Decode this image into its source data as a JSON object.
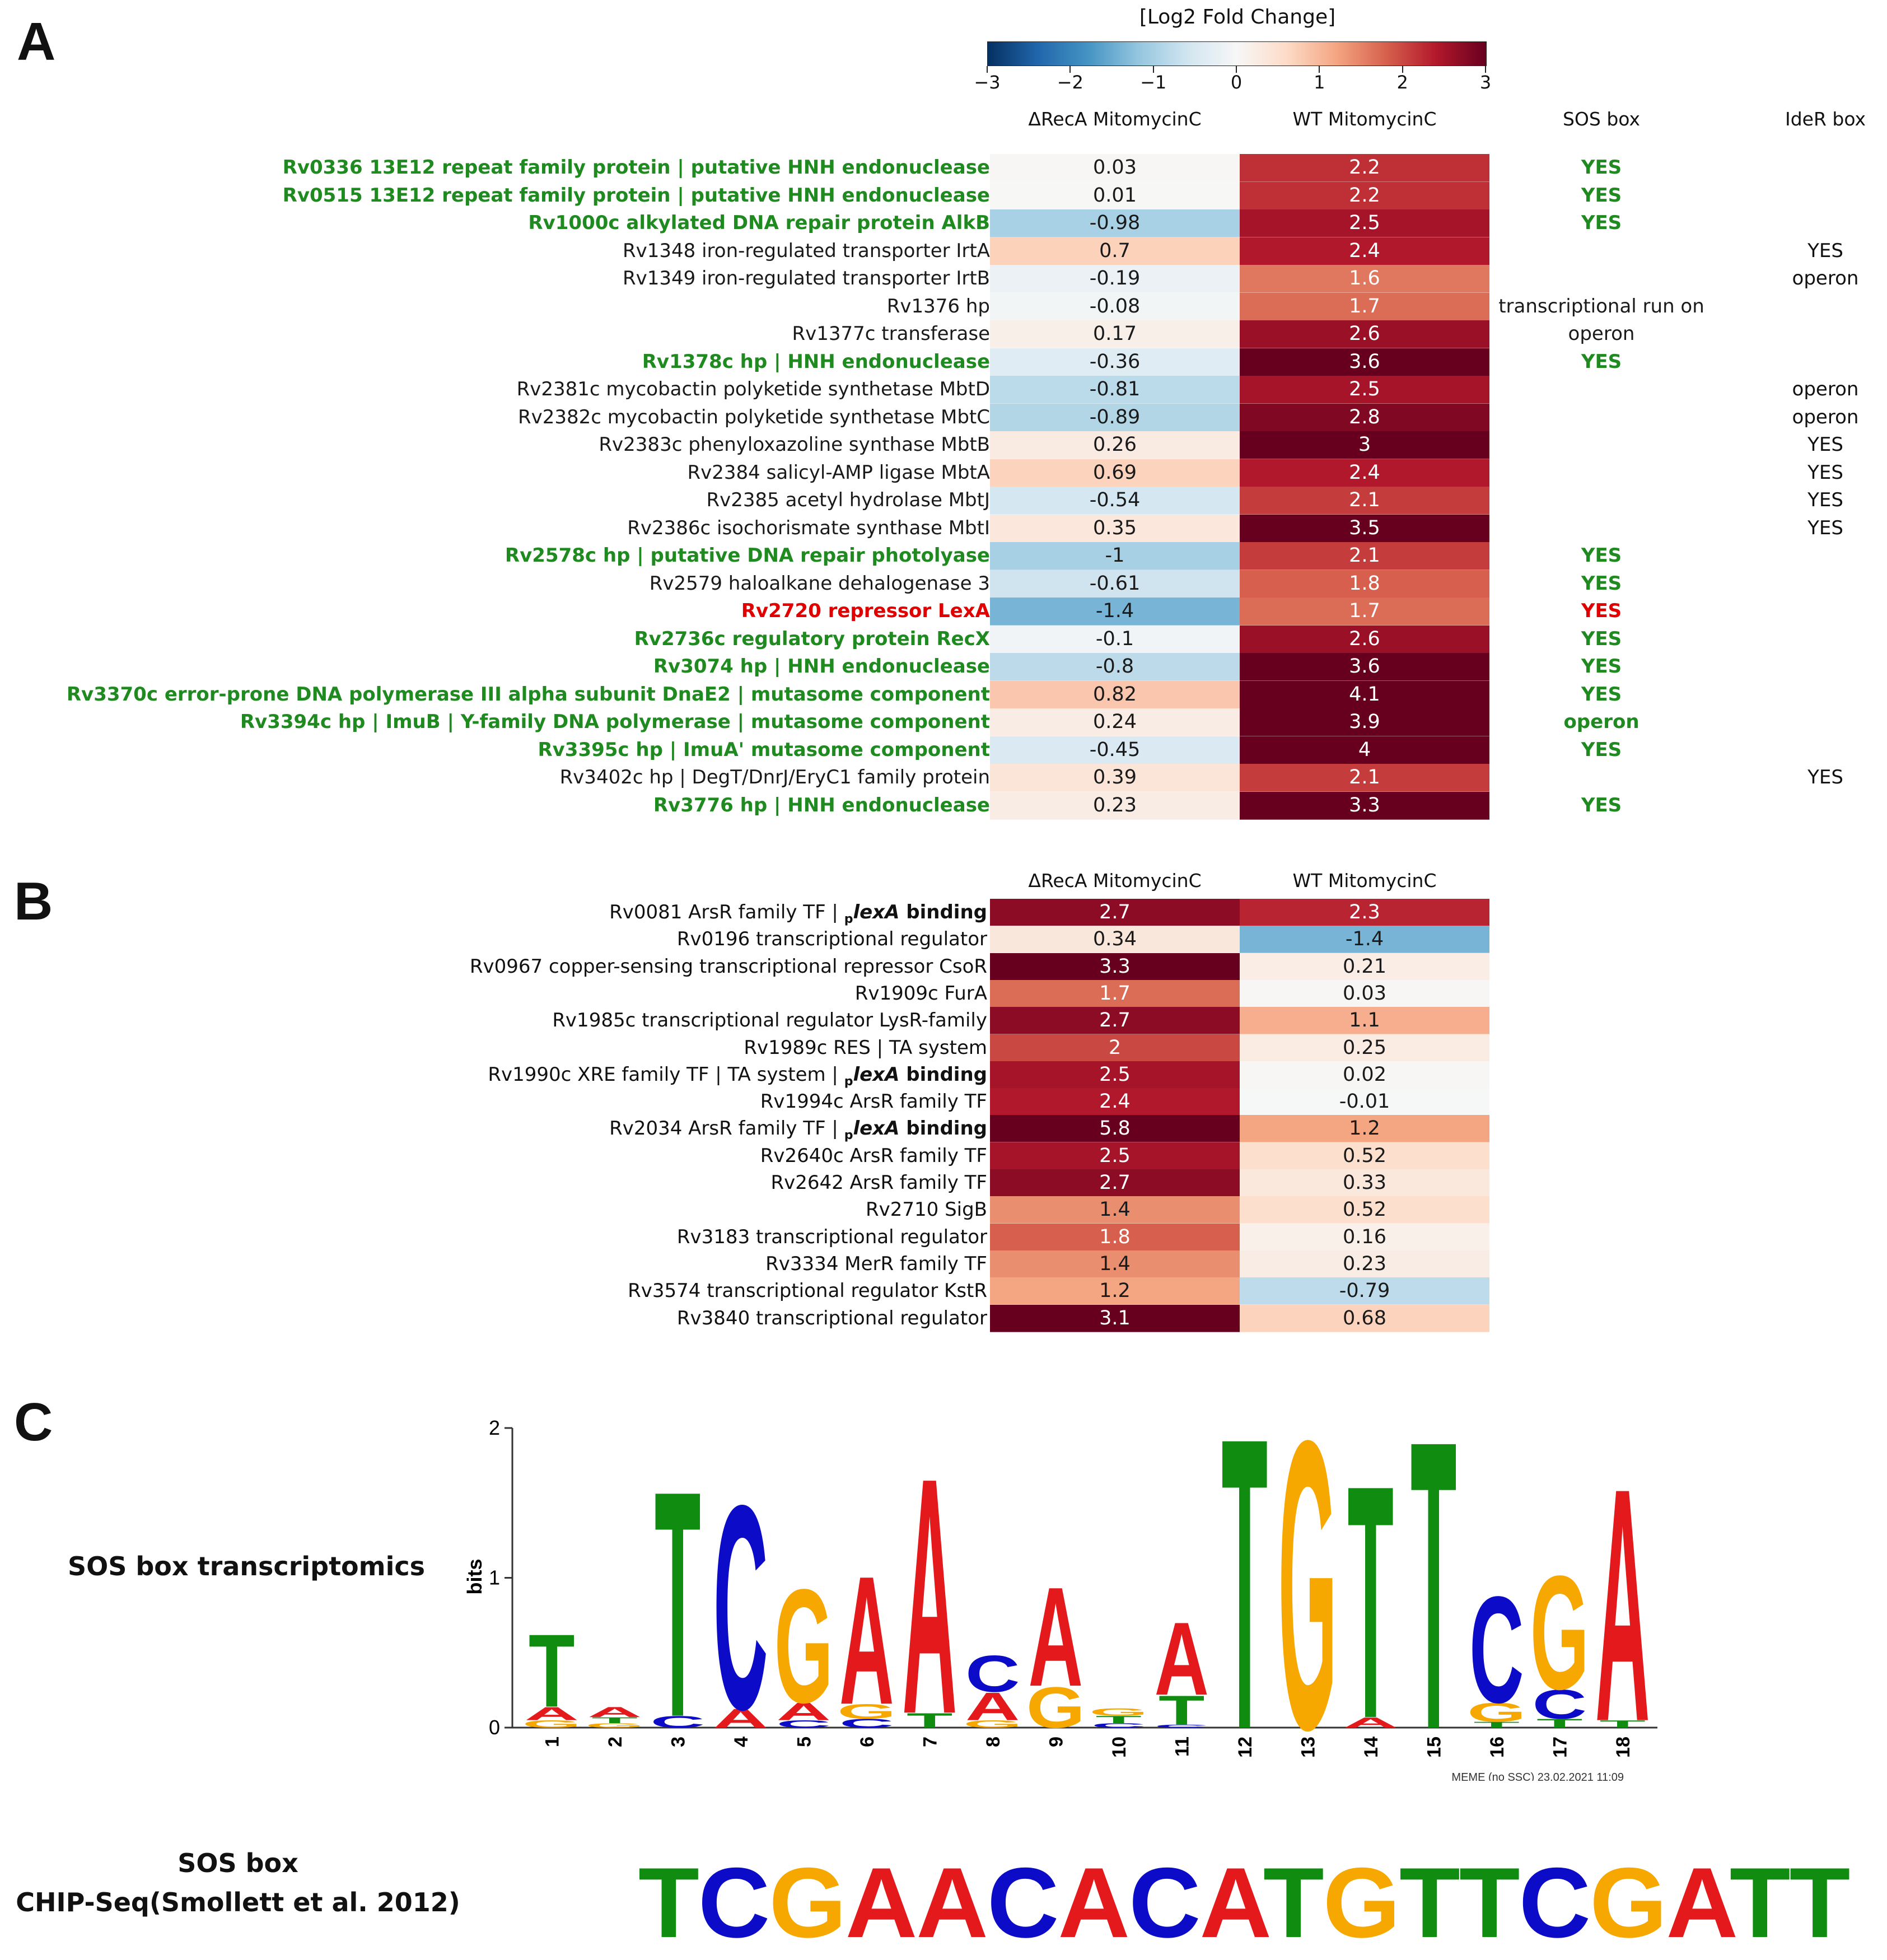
{
  "panels": {
    "a": "A",
    "b": "B",
    "c": "C"
  },
  "colorbar": {
    "title": "[Log2 Fold Change]",
    "ticks": [
      "−3",
      "−2",
      "−1",
      "0",
      "1",
      "2",
      "3"
    ],
    "min": -3,
    "max": 3
  },
  "panel_a": {
    "headers": {
      "col1": "ΔRecA MitomycinC",
      "col2": "WT MitomycinC",
      "col3": "SOS box",
      "col4": "IdeR box"
    },
    "rows": [
      {
        "label": "Rv0336 13E12 repeat family protein | putative HNH endonuclease",
        "style": "green",
        "recA": "0.03",
        "wt": "2.2",
        "sos": "YES",
        "sos_style": "green",
        "ider": ""
      },
      {
        "label": "Rv0515 13E12 repeat family protein | putative HNH endonuclease",
        "style": "green",
        "recA": "0.01",
        "wt": "2.2",
        "sos": "YES",
        "sos_style": "green",
        "ider": ""
      },
      {
        "label": "Rv1000c alkylated DNA repair protein AlkB",
        "style": "green",
        "recA": "-0.98",
        "wt": "2.5",
        "sos": "YES",
        "sos_style": "green",
        "ider": ""
      },
      {
        "label": "Rv1348 iron-regulated transporter IrtA",
        "style": "black",
        "recA": "0.7",
        "wt": "2.4",
        "sos": "",
        "sos_style": "black",
        "ider": "YES"
      },
      {
        "label": "Rv1349 iron-regulated transporter IrtB",
        "style": "black",
        "recA": "-0.19",
        "wt": "1.6",
        "sos": "",
        "sos_style": "black",
        "ider": "operon"
      },
      {
        "label": "Rv1376 hp",
        "style": "black",
        "recA": "-0.08",
        "wt": "1.7",
        "sos": "transcriptional run on",
        "sos_style": "black",
        "ider": ""
      },
      {
        "label": "Rv1377c transferase",
        "style": "black",
        "recA": "0.17",
        "wt": "2.6",
        "sos": "operon",
        "sos_style": "black",
        "ider": ""
      },
      {
        "label": "Rv1378c hp | HNH endonuclease",
        "style": "green",
        "recA": "-0.36",
        "wt": "3.6",
        "sos": "YES",
        "sos_style": "green",
        "ider": ""
      },
      {
        "label": "Rv2381c mycobactin polyketide synthetase MbtD",
        "style": "black",
        "recA": "-0.81",
        "wt": "2.5",
        "sos": "",
        "sos_style": "black",
        "ider": "operon"
      },
      {
        "label": "Rv2382c mycobactin polyketide synthetase MbtC",
        "style": "black",
        "recA": "-0.89",
        "wt": "2.8",
        "sos": "",
        "sos_style": "black",
        "ider": "operon"
      },
      {
        "label": "Rv2383c phenyloxazoline synthase MbtB",
        "style": "black",
        "recA": "0.26",
        "wt": "3",
        "sos": "",
        "sos_style": "black",
        "ider": "YES"
      },
      {
        "label": "Rv2384 salicyl-AMP ligase MbtA",
        "style": "black",
        "recA": "0.69",
        "wt": "2.4",
        "sos": "",
        "sos_style": "black",
        "ider": "YES"
      },
      {
        "label": "Rv2385 acetyl hydrolase MbtJ",
        "style": "black",
        "recA": "-0.54",
        "wt": "2.1",
        "sos": "",
        "sos_style": "black",
        "ider": "YES"
      },
      {
        "label": "Rv2386c isochorismate synthase MbtI",
        "style": "black",
        "recA": "0.35",
        "wt": "3.5",
        "sos": "",
        "sos_style": "black",
        "ider": "YES"
      },
      {
        "label": "Rv2578c hp | putative DNA repair photolyase",
        "style": "green",
        "recA": "-1",
        "wt": "2.1",
        "sos": "YES",
        "sos_style": "green",
        "ider": ""
      },
      {
        "label": "Rv2579 haloalkane dehalogenase 3",
        "style": "black",
        "recA": "-0.61",
        "wt": "1.8",
        "sos": "YES",
        "sos_style": "green",
        "ider": ""
      },
      {
        "label": "Rv2720 repressor LexA",
        "style": "red",
        "recA": "-1.4",
        "wt": "1.7",
        "sos": "YES",
        "sos_style": "red",
        "ider": ""
      },
      {
        "label": "Rv2736c regulatory protein RecX",
        "style": "green",
        "recA": "-0.1",
        "wt": "2.6",
        "sos": "YES",
        "sos_style": "green",
        "ider": ""
      },
      {
        "label": "Rv3074 hp | HNH endonuclease",
        "style": "green",
        "recA": "-0.8",
        "wt": "3.6",
        "sos": "YES",
        "sos_style": "green",
        "ider": ""
      },
      {
        "label": "Rv3370c error-prone DNA polymerase III alpha subunit DnaE2 | mutasome component",
        "style": "green",
        "recA": "0.82",
        "wt": "4.1",
        "sos": "YES",
        "sos_style": "green",
        "ider": ""
      },
      {
        "label": "Rv3394c hp | ImuB | Y-family DNA polymerase | mutasome component",
        "style": "green",
        "recA": "0.24",
        "wt": "3.9",
        "sos": "operon",
        "sos_style": "green",
        "ider": ""
      },
      {
        "label": "Rv3395c hp | ImuA' mutasome component",
        "style": "green",
        "recA": "-0.45",
        "wt": "4",
        "sos": "YES",
        "sos_style": "green",
        "ider": ""
      },
      {
        "label": "Rv3402c hp | DegT/DnrJ/EryC1 family protein",
        "style": "black",
        "recA": "0.39",
        "wt": "2.1",
        "sos": "",
        "sos_style": "black",
        "ider": "YES"
      },
      {
        "label": "Rv3776 hp | HNH endonuclease",
        "style": "green",
        "recA": "0.23",
        "wt": "3.3",
        "sos": "YES",
        "sos_style": "green",
        "ider": ""
      }
    ]
  },
  "panel_b": {
    "headers": {
      "col1": "ΔRecA MitomycinC",
      "col2": "WT MitomycinC"
    },
    "rows": [
      {
        "label": "Rv0081 ArsR family TF | ",
        "sub": "p",
        "bold": "lexA",
        "suffix": " binding",
        "recA": "2.7",
        "wt": "2.3"
      },
      {
        "label": "Rv0196 transcriptional regulator",
        "recA": "0.34",
        "wt": "-1.4"
      },
      {
        "label": "Rv0967 copper-sensing transcriptional repressor CsoR",
        "recA": "3.3",
        "wt": "0.21"
      },
      {
        "label": "Rv1909c FurA",
        "recA": "1.7",
        "wt": "0.03"
      },
      {
        "label": "Rv1985c transcriptional regulator LysR-family",
        "recA": "2.7",
        "wt": "1.1"
      },
      {
        "label": "Rv1989c RES | TA system",
        "recA": "2",
        "wt": "0.25"
      },
      {
        "label": "Rv1990c XRE family TF | TA system | ",
        "sub": "p",
        "bold": "lexA",
        "suffix": " binding",
        "recA": "2.5",
        "wt": "0.02"
      },
      {
        "label": "Rv1994c ArsR family TF",
        "recA": "2.4",
        "wt": "-0.01"
      },
      {
        "label": "Rv2034 ArsR family TF | ",
        "sub": "p",
        "bold": "lexA",
        "suffix": " binding",
        "recA": "5.8",
        "wt": "1.2"
      },
      {
        "label": "Rv2640c ArsR family TF",
        "recA": "2.5",
        "wt": "0.52"
      },
      {
        "label": "Rv2642 ArsR family TF",
        "recA": "2.7",
        "wt": "0.33"
      },
      {
        "label": "Rv2710 SigB",
        "recA": "1.4",
        "wt": "0.52"
      },
      {
        "label": "Rv3183 transcriptional regulator",
        "recA": "1.8",
        "wt": "0.16"
      },
      {
        "label": "Rv3334 MerR family TF",
        "recA": "1.4",
        "wt": "0.23"
      },
      {
        "label": "Rv3574 transcriptional regulator KstR",
        "recA": "1.2",
        "wt": "-0.79"
      },
      {
        "label": "Rv3840 transcriptional regulator",
        "recA": "3.1",
        "wt": "0.68"
      }
    ]
  },
  "panel_c": {
    "side_label": "SOS box transcriptomics",
    "ylabel": "bits",
    "yticks": [
      "0",
      "1",
      "2"
    ],
    "ymax": 2,
    "footer": "MEME (no SSC) 23.02.2021 11:09",
    "positions": [
      {
        "pos": "1",
        "letters": [
          [
            "G",
            0.05
          ],
          [
            "A",
            0.09
          ],
          [
            "T",
            0.5
          ]
        ]
      },
      {
        "pos": "2",
        "letters": [
          [
            "G",
            0.03
          ],
          [
            "T",
            0.04
          ],
          [
            "A",
            0.07
          ]
        ]
      },
      {
        "pos": "3",
        "letters": [
          [
            "C",
            0.08
          ],
          [
            "T",
            1.55
          ]
        ]
      },
      {
        "pos": "4",
        "letters": [
          [
            "A",
            0.13
          ],
          [
            "C",
            1.4
          ]
        ]
      },
      {
        "pos": "5",
        "letters": [
          [
            "C",
            0.05
          ],
          [
            "A",
            0.12
          ],
          [
            "G",
            0.78
          ]
        ]
      },
      {
        "pos": "6",
        "letters": [
          [
            "C",
            0.06
          ],
          [
            "G",
            0.1
          ],
          [
            "A",
            0.88
          ]
        ]
      },
      {
        "pos": "7",
        "letters": [
          [
            "T",
            0.1
          ],
          [
            "A",
            1.62
          ]
        ]
      },
      {
        "pos": "8",
        "letters": [
          [
            "G",
            0.05
          ],
          [
            "A",
            0.19
          ],
          [
            "C",
            0.25
          ]
        ]
      },
      {
        "pos": "9",
        "letters": [
          [
            "G",
            0.28
          ],
          [
            "A",
            0.68
          ]
        ]
      },
      {
        "pos": "10",
        "letters": [
          [
            "C",
            0.03
          ],
          [
            "T",
            0.05
          ],
          [
            "G",
            0.05
          ]
        ]
      },
      {
        "pos": "11",
        "letters": [
          [
            "C",
            0.02
          ],
          [
            "T",
            0.2
          ],
          [
            "A",
            0.5
          ]
        ]
      },
      {
        "pos": "12",
        "letters": [
          [
            "T",
            2.0
          ]
        ]
      },
      {
        "pos": "13",
        "letters": [
          [
            "G",
            1.98
          ]
        ]
      },
      {
        "pos": "14",
        "letters": [
          [
            "A",
            0.07
          ],
          [
            "T",
            1.6
          ]
        ]
      },
      {
        "pos": "15",
        "letters": [
          [
            "T",
            1.98
          ]
        ]
      },
      {
        "pos": "16",
        "letters": [
          [
            "T",
            0.04
          ],
          [
            "G",
            0.13
          ],
          [
            "C",
            0.73
          ]
        ]
      },
      {
        "pos": "17",
        "letters": [
          [
            "T",
            0.06
          ],
          [
            "C",
            0.2
          ],
          [
            "G",
            0.78
          ]
        ]
      },
      {
        "pos": "18",
        "letters": [
          [
            "T",
            0.05
          ],
          [
            "A",
            1.6
          ]
        ]
      }
    ]
  },
  "sos_chip": {
    "label_line1": "SOS box",
    "label_line2": "CHIP-Seq(Smollett et al. 2012)",
    "sequence": "TCGAACACATGTTCGATT"
  },
  "colors": {
    "A": "#e4191c",
    "C": "#0c0cc8",
    "G": "#f6a800",
    "T": "#108c10",
    "green_text": "#1f8a1f",
    "red_text": "#e00000"
  }
}
